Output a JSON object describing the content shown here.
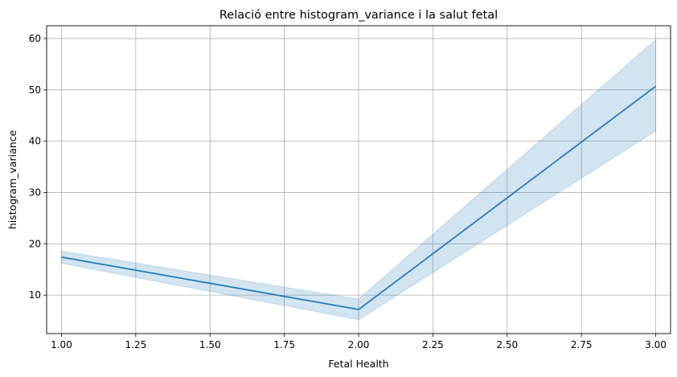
{
  "chart_data": {
    "type": "line",
    "title": "Relació entre histogram_variance i la salut fetal",
    "xlabel": "Fetal Health",
    "ylabel": "histogram_variance",
    "xlim": [
      0.95,
      3.05
    ],
    "ylim": [
      2.5,
      62.5
    ],
    "grid": true,
    "x_ticks": [
      1.0,
      1.25,
      1.5,
      1.75,
      2.0,
      2.25,
      2.5,
      2.75,
      3.0
    ],
    "x_tick_labels": [
      "1.00",
      "1.25",
      "1.50",
      "1.75",
      "2.00",
      "2.25",
      "2.50",
      "2.75",
      "3.00"
    ],
    "y_ticks": [
      10,
      20,
      30,
      40,
      50,
      60
    ],
    "y_tick_labels": [
      "10",
      "20",
      "30",
      "40",
      "50",
      "60"
    ],
    "colors": {
      "line": "#1f77b4",
      "band": "#1f77b4",
      "grid": "#b0b0b0"
    },
    "series": [
      {
        "x": [
          1,
          2,
          3
        ],
        "y": [
          17.4,
          7.2,
          50.7
        ],
        "ci_lower": [
          16.2,
          5.2,
          42.0
        ],
        "ci_upper": [
          18.6,
          9.2,
          59.8
        ]
      }
    ]
  }
}
